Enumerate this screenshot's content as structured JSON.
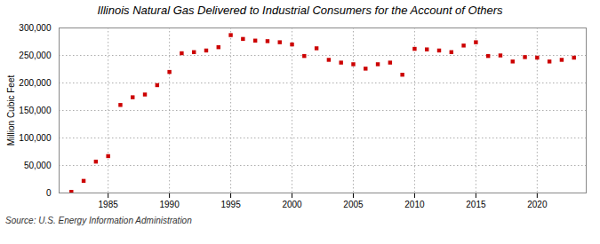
{
  "chart_data": {
    "type": "scatter",
    "title": "Illinois Natural Gas Delivered to Industrial Consumers for the Account of Others",
    "ylabel": "Million Cubic Feet",
    "annotations": [
      "Source: U.S. Energy Information Administration"
    ],
    "x": [
      1982,
      1983,
      1984,
      1985,
      1986,
      1987,
      1988,
      1989,
      1990,
      1991,
      1992,
      1993,
      1994,
      1995,
      1996,
      1997,
      1998,
      1999,
      2000,
      2001,
      2002,
      2003,
      2004,
      2005,
      2006,
      2007,
      2008,
      2009,
      2010,
      2011,
      2012,
      2013,
      2014,
      2015,
      2016,
      2017,
      2018,
      2019,
      2020,
      2021,
      2022,
      2023
    ],
    "values": [
      2000,
      22000,
      57000,
      67000,
      160000,
      174000,
      179000,
      196000,
      220000,
      254000,
      256000,
      259000,
      265000,
      287000,
      280000,
      277000,
      276000,
      274000,
      270000,
      249000,
      263000,
      242000,
      237000,
      234000,
      226000,
      234000,
      237000,
      215000,
      262000,
      261000,
      259000,
      256000,
      268000,
      274000,
      249000,
      250000,
      239000,
      247000,
      246000,
      239000,
      242000,
      246000
    ],
    "color": "#cc0000",
    "marker": "square",
    "xlim": [
      1981,
      2024
    ],
    "xticks": [
      1985,
      1990,
      1995,
      2000,
      2005,
      2010,
      2015,
      2020
    ],
    "ylim": [
      0,
      300000
    ],
    "yticks": [
      0,
      {
        "value": 50000,
        "label": "50,000"
      },
      {
        "value": 100000,
        "label": "100,000"
      },
      {
        "value": 150000,
        "label": "150,000"
      },
      {
        "value": 200000,
        "label": "200,000"
      },
      {
        "value": 250000,
        "label": "250,000"
      },
      {
        "value": 300000,
        "label": "300,000"
      }
    ],
    "grid": true
  }
}
